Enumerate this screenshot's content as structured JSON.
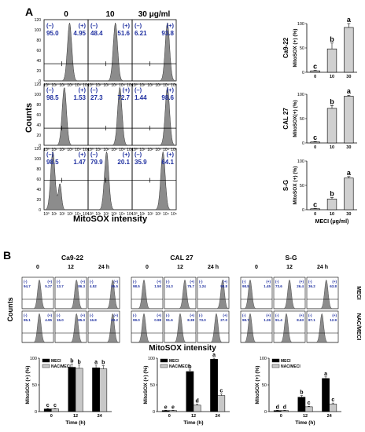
{
  "panelA": {
    "letter": "A",
    "concentrations": [
      "0",
      "10",
      "30 μg/ml"
    ],
    "ylabel": "Counts",
    "xlabel": "MitoSOX intensity",
    "rows": [
      {
        "cell": "Ca9-22",
        "neg": [
          "(–)",
          "(–)",
          "(–)"
        ],
        "pos": [
          "(+)",
          "(+)",
          "(+)"
        ],
        "neg_vals": [
          "95.0",
          "48.4",
          "6.21"
        ],
        "pos_vals": [
          "4.95",
          "51.6",
          "93.8"
        ]
      },
      {
        "cell": "CAL 27",
        "neg": [
          "(–)",
          "(–)",
          "(–)"
        ],
        "pos": [
          "(+)",
          "(+)",
          "(+)"
        ],
        "neg_vals": [
          "98.5",
          "27.3",
          "1.44"
        ],
        "pos_vals": [
          "1.53",
          "72.7",
          "98.6"
        ]
      },
      {
        "cell": "S-G",
        "neg": [
          "(–)",
          "(–)",
          "(–)"
        ],
        "pos": [
          "(+)",
          "(+)",
          "(+)"
        ],
        "neg_vals": [
          "98.5",
          "79.9",
          "35.9"
        ],
        "pos_vals": [
          "1.47",
          "20.1",
          "64.1"
        ]
      }
    ],
    "yticks": [
      "0",
      "20",
      "40",
      "60",
      "80",
      "100",
      "120"
    ],
    "xticks": [
      "10⁰",
      "10¹",
      "10²",
      "10³",
      "10⁴",
      "10⁵"
    ]
  },
  "panelB": {
    "letter": "B",
    "ylabel": "Counts",
    "xlabel": "MitoSOX intensity",
    "row_labels": [
      "MECI",
      "NAC/MECI"
    ],
    "groups": [
      {
        "cell": "Ca9-22",
        "times": [
          "0",
          "12",
          "24 h"
        ],
        "vals": [
          [
            "94.7",
            "5.27",
            "13.7",
            "86.3",
            "4.52",
            "95.5"
          ],
          [
            "95.1",
            "4.95",
            "15.0",
            "85.0",
            "16.8",
            "83.2"
          ]
        ]
      },
      {
        "cell": "CAL 27",
        "times": [
          "0",
          "12",
          "24 h"
        ],
        "vals": [
          [
            "98.5",
            "1.50",
            "24.3",
            "75.7",
            "1.24",
            "98.8"
          ],
          [
            "99.0",
            "0.98",
            "91.6",
            "8.38",
            "73.0",
            "27.0"
          ]
        ]
      },
      {
        "cell": "S-G",
        "times": [
          "0",
          "12",
          "24 h"
        ],
        "vals": [
          [
            "98.5",
            "1.45",
            "73.6",
            "26.4",
            "36.2",
            "63.8"
          ],
          [
            "98.7",
            "1.26",
            "91.4",
            "8.63",
            "87.1",
            "12.9"
          ]
        ]
      }
    ]
  },
  "chart_data": [
    {
      "type": "bar",
      "id": "A-Ca9-22",
      "categories": [
        "0",
        "10",
        "30"
      ],
      "values": [
        3,
        48,
        92
      ],
      "errors": [
        1,
        12,
        8
      ],
      "letters": [
        "c",
        "b",
        "a"
      ],
      "ylabel": "MitoSOX (+) (%)",
      "side_label": "Ca9-22",
      "ylim": [
        0,
        100
      ],
      "yticks": [
        "0",
        "50",
        "100"
      ]
    },
    {
      "type": "bar",
      "id": "A-CAL27",
      "categories": [
        "0",
        "10",
        "30"
      ],
      "values": [
        2,
        71,
        96
      ],
      "errors": [
        1,
        6,
        2
      ],
      "letters": [
        "c",
        "b",
        "a"
      ],
      "ylabel": "MitoSOX(+) (%)",
      "side_label": "CAL 27",
      "ylim": [
        0,
        100
      ],
      "yticks": [
        "0",
        "50",
        "100"
      ]
    },
    {
      "type": "bar",
      "id": "A-S-G",
      "categories": [
        "0",
        "10",
        "30"
      ],
      "values": [
        2,
        22,
        65
      ],
      "errors": [
        0.5,
        3,
        3
      ],
      "letters": [
        "c",
        "b",
        "a"
      ],
      "ylabel": "MitoSOX (+) (%)",
      "side_label": "S-G",
      "xlabel": "MECI (μg/ml)",
      "ylim": [
        0,
        100
      ],
      "yticks": [
        "0",
        "50",
        "100"
      ]
    },
    {
      "type": "bar",
      "id": "B-Ca9-22",
      "categories": [
        "0",
        "12",
        "24"
      ],
      "series": [
        {
          "name": "MECI",
          "values": [
            5,
            83,
            82
          ],
          "errors": [
            1,
            6,
            5
          ],
          "letters": [
            "c",
            "b",
            "a"
          ]
        },
        {
          "name": "NAC/MECI",
          "values": [
            5,
            81,
            80
          ],
          "errors": [
            1,
            6,
            6
          ],
          "letters": [
            "c",
            "b",
            "b"
          ]
        }
      ],
      "ylabel": "MitoSOX (+) (%)",
      "xlabel": "Time (h)",
      "ylim": [
        0,
        100
      ],
      "yticks": [
        "0",
        "50",
        "100"
      ]
    },
    {
      "type": "bar",
      "id": "B-CAL27",
      "categories": [
        "0",
        "12",
        "24"
      ],
      "series": [
        {
          "name": "MECI",
          "values": [
            2,
            75,
            98
          ],
          "errors": [
            0.5,
            3,
            2
          ],
          "letters": [
            "e",
            "b",
            "a"
          ]
        },
        {
          "name": "NAC/MECI",
          "values": [
            2,
            12,
            30
          ],
          "errors": [
            0.5,
            2,
            3
          ],
          "letters": [
            "e",
            "d",
            "c"
          ]
        }
      ],
      "ylabel": "MitoSOX (+) (%)",
      "xlabel": "Time (h)",
      "ylim": [
        0,
        100
      ],
      "yticks": [
        "0",
        "50",
        "100"
      ]
    },
    {
      "type": "bar",
      "id": "B-S-G",
      "categories": [
        "0",
        "12",
        "24"
      ],
      "series": [
        {
          "name": "MECI",
          "values": [
            2,
            27,
            62
          ],
          "errors": [
            0.5,
            3,
            3
          ],
          "letters": [
            "d",
            "b",
            "a"
          ]
        },
        {
          "name": "NAC/MECI",
          "values": [
            2,
            9,
            14
          ],
          "errors": [
            0.5,
            1,
            2
          ],
          "letters": [
            "d",
            "c",
            "c"
          ]
        }
      ],
      "ylabel": "MitoSOX (+) (%)",
      "xlabel": "Time (h)",
      "ylim": [
        0,
        100
      ],
      "yticks": [
        "0",
        "50",
        "100"
      ]
    }
  ]
}
